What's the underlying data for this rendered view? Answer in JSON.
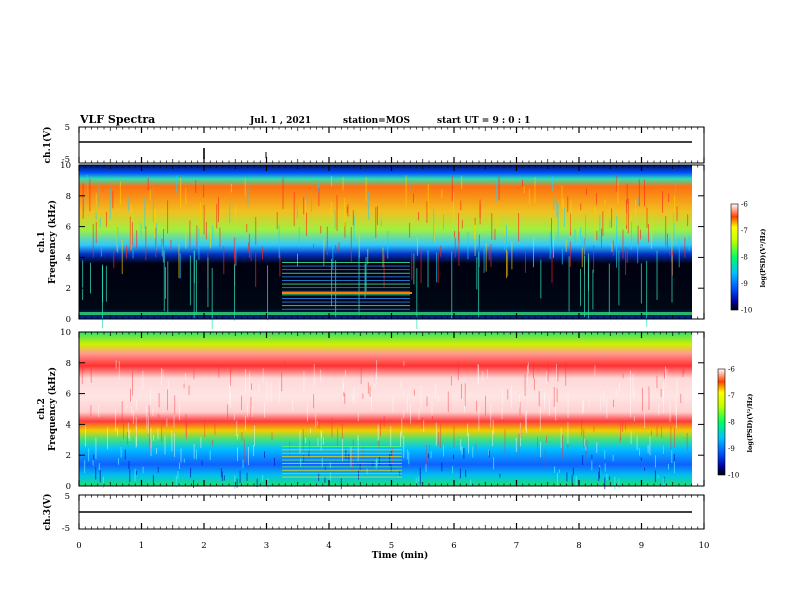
{
  "header": {
    "title": "VLF Spectra",
    "date": "Jul. 1 , 2021",
    "station": "station=MOS",
    "start": "start UT = 9 : 0 : 1"
  },
  "chart_data": [
    {
      "type": "line",
      "ylabel": "ch.1(V)",
      "ylim": [
        -5,
        5
      ],
      "yticks": [
        "5",
        "-5"
      ],
      "xlim": [
        0,
        10
      ]
    },
    {
      "type": "heatmap",
      "ylabel_channel": "ch.1",
      "ylabel": "Frequency (kHz)",
      "ylim": [
        0,
        10
      ],
      "yticks": [
        "10",
        "8",
        "6",
        "4",
        "2",
        "0"
      ],
      "colorbar": {
        "label": "log(PSD)(V²/Hz)",
        "ticks": [
          "-6",
          "-7",
          "-8",
          "-9",
          "-10"
        ],
        "range": [
          -10,
          -6
        ]
      }
    },
    {
      "type": "heatmap",
      "ylabel_channel": "ch.2",
      "ylabel": "Frequency (kHz)",
      "ylim": [
        0,
        10
      ],
      "yticks": [
        "10",
        "8",
        "6",
        "4",
        "2",
        "0"
      ],
      "colorbar": {
        "label": "log(PSD)(V²/Hz)",
        "ticks": [
          "-6",
          "-7",
          "-8",
          "-9",
          "-10"
        ],
        "range": [
          -10,
          -6
        ]
      }
    },
    {
      "type": "line",
      "ylabel": "ch.3(V)",
      "ylim": [
        -5,
        5
      ],
      "yticks": [
        "5",
        "-5"
      ],
      "xlim": [
        0,
        10
      ],
      "xlabel": "Time (min)",
      "xticks": [
        "0",
        "1",
        "2",
        "3",
        "4",
        "5",
        "6",
        "7",
        "8",
        "9",
        "10"
      ]
    }
  ]
}
